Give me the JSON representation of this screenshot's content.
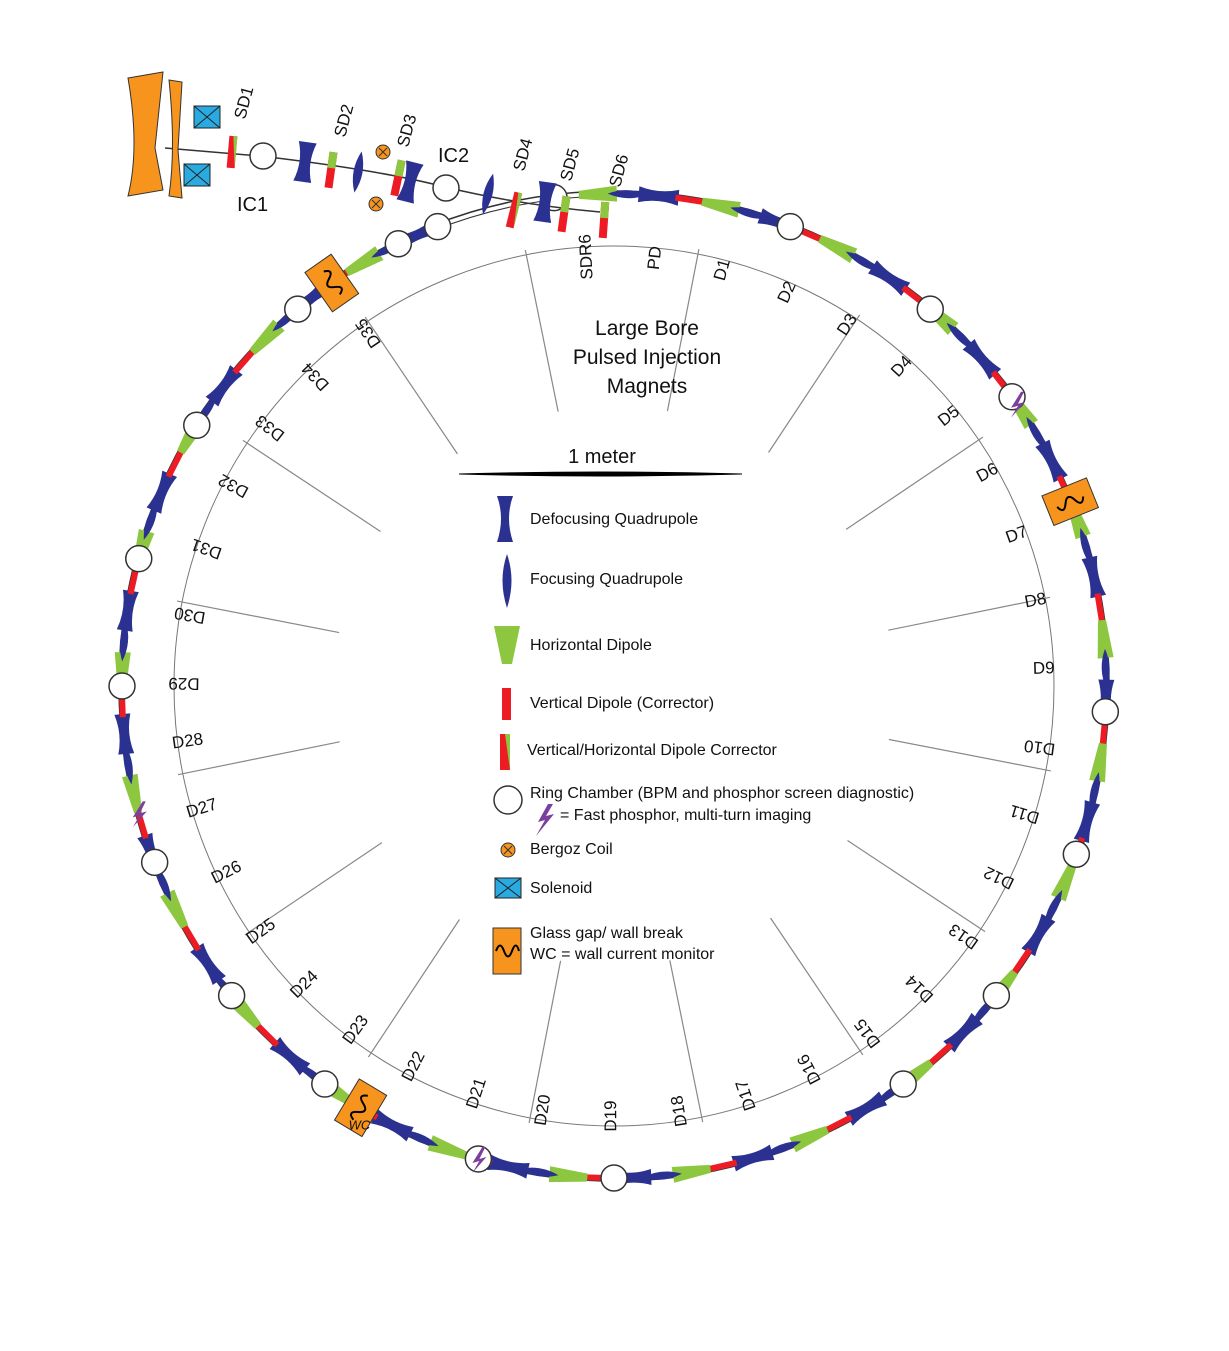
{
  "colors": {
    "defocusing_quad": "#2b3190",
    "focusing_quad": "#2b3190",
    "horizontal_dipole": "#8dc63f",
    "vertical_dipole": "#ed1c24",
    "bergoz_coil": "#f7941d",
    "solenoid": "#29abe2",
    "glass_gap": "#f7941d",
    "fast_phosphor": "#7b3f9e",
    "line": "#333333"
  },
  "center_title": [
    "Large Bore",
    "Pulsed Injection",
    "Magnets"
  ],
  "scale_label": "1 meter",
  "legend": [
    {
      "icon": "defocusing-quad",
      "text": "Defocusing Quadrupole"
    },
    {
      "icon": "focusing-quad",
      "text": "Focusing Quadrupole"
    },
    {
      "icon": "horizontal-dipole",
      "text": "Horizontal Dipole"
    },
    {
      "icon": "vertical-dipole",
      "text": "Vertical Dipole (Corrector)"
    },
    {
      "icon": "vh-corrector",
      "text": "Vertical/Horizontal Dipole Corrector"
    },
    {
      "icon": "ring-chamber",
      "text": "Ring Chamber (BPM and phosphor screen diagnostic)",
      "text2": "= Fast phosphor, multi-turn imaging"
    },
    {
      "icon": "bergoz-coil",
      "text": "Bergoz Coil"
    },
    {
      "icon": "solenoid",
      "text": "Solenoid"
    },
    {
      "icon": "glass-gap",
      "text": "Glass gap/ wall break",
      "text2": "WC = wall current monitor"
    }
  ],
  "injection_labels": {
    "sd": [
      "SD1",
      "SD2",
      "SD3",
      "SD4",
      "SD5",
      "SD6"
    ],
    "ic": [
      "IC1",
      "IC2"
    ]
  },
  "ring_labels": [
    "SDR6",
    "PD",
    "D1",
    "D2",
    "D3",
    "D4",
    "D5",
    "D6",
    "D7",
    "D8",
    "D9",
    "D10",
    "D11",
    "D12",
    "D13",
    "D14",
    "D15",
    "D16",
    "D17",
    "D18",
    "D19",
    "D20",
    "D21",
    "D22",
    "D23",
    "D24",
    "D25",
    "D26",
    "D27",
    "D28",
    "D29",
    "D30",
    "D31",
    "D32",
    "D33",
    "D34",
    "D35"
  ],
  "wc_label": "WC"
}
